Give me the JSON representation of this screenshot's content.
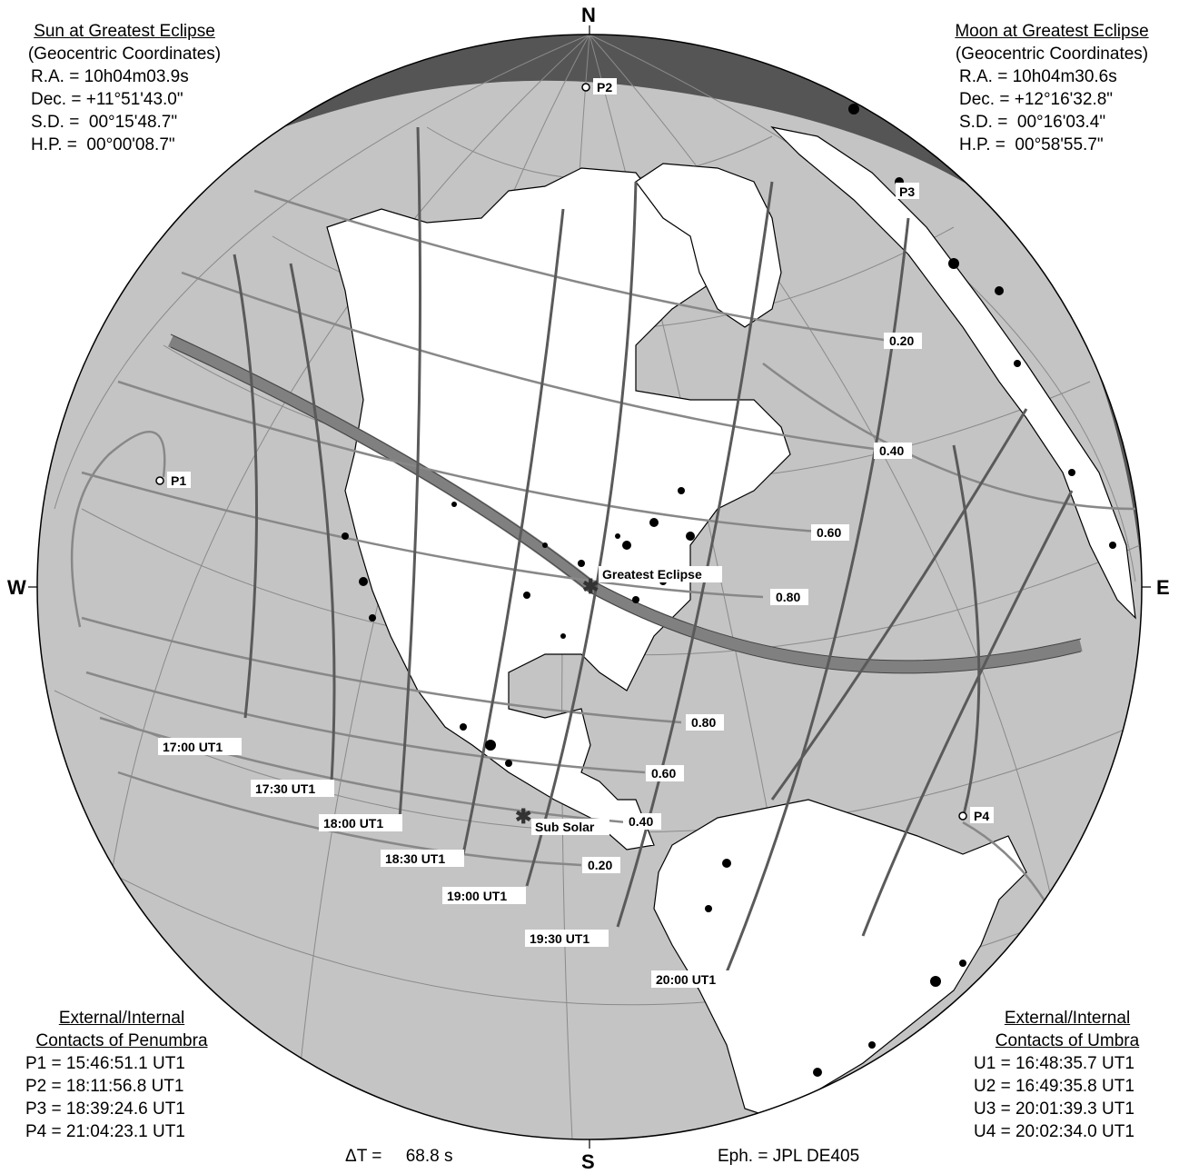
{
  "sun": {
    "heading1": "Sun at Greatest Eclipse",
    "heading2": "(Geocentric Coordinates)",
    "rows": [
      "R.A. = 10h04m03.9s",
      "Dec. = +11°51'43.0\"",
      "S.D. =  00°15'48.7\"",
      "H.P. =  00°00'08.7\""
    ]
  },
  "moon": {
    "heading1": "Moon at Greatest Eclipse",
    "heading2": "(Geocentric Coordinates)",
    "rows": [
      "R.A. = 10h04m30.6s",
      "Dec. = +12°16'32.8\"",
      "S.D. =  00°16'03.4\"",
      "H.P. =  00°58'55.7\""
    ]
  },
  "penumbra": {
    "heading1": "External/Internal",
    "heading2": "Contacts of Penumbra",
    "rows": [
      "P1 = 15:46:51.1 UT1",
      "P2 = 18:11:56.8 UT1",
      "P3 = 18:39:24.6 UT1",
      "P4 = 21:04:23.1 UT1"
    ]
  },
  "umbra": {
    "heading1": "External/Internal",
    "heading2": "Contacts of Umbra",
    "rows": [
      "U1 = 16:48:35.7 UT1",
      "U2 = 16:49:35.8 UT1",
      "U3 = 20:01:39.3 UT1",
      "U4 = 20:02:34.0 UT1"
    ]
  },
  "compass": {
    "north": "N",
    "south": "S",
    "east": "E",
    "west": "W"
  },
  "footer": {
    "delta_t": "ΔT =     68.8 s",
    "ephemeris": "Eph. = JPL DE405"
  },
  "map": {
    "contacts": {
      "p1": "P1",
      "p2": "P2",
      "p3": "P3",
      "p4": "P4"
    },
    "greatest_eclipse": "Greatest Eclipse",
    "sub_solar": "Sub Solar",
    "magnitude_labels": [
      "0.20",
      "0.40",
      "0.60",
      "0.80",
      "0.80",
      "0.60",
      "0.40",
      "0.20"
    ],
    "time_labels": [
      "17:00 UT1",
      "17:30 UT1",
      "18:00 UT1",
      "18:30 UT1",
      "19:00 UT1",
      "19:30 UT1",
      "20:00 UT1"
    ],
    "colors": {
      "globe": "#c4c4c4",
      "night": "#555555",
      "land": "#ffffff",
      "path": "#808080",
      "curves": "#888888",
      "timelines": "#5a5a5a"
    }
  }
}
